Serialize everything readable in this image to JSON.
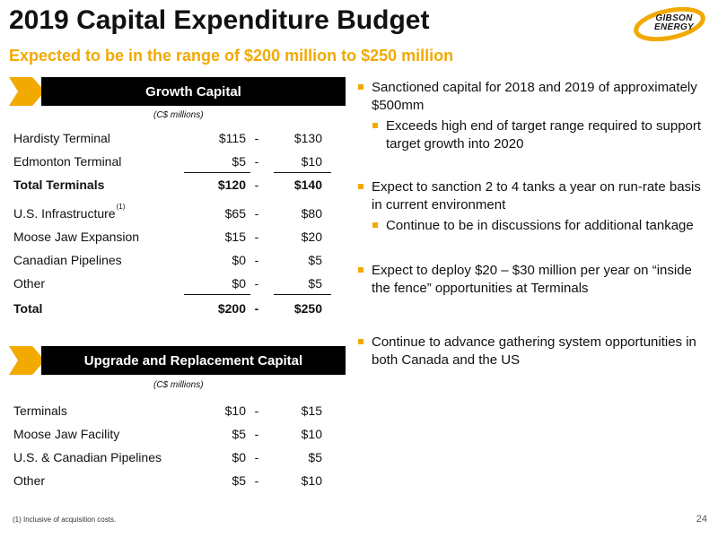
{
  "header": {
    "title": "2019 Capital Expenditure Budget",
    "subtitle": "Expected to be in the range of $200 million to $250 million"
  },
  "logo": {
    "line1": "GIBSON",
    "line2": "ENERGY"
  },
  "growth": {
    "banner": "Growth Capital",
    "unit": "(C$ millions)",
    "rows": [
      {
        "label": "Hardisty Terminal",
        "low": "$115",
        "dash": "-",
        "high": "$130"
      },
      {
        "label": "Edmonton Terminal",
        "low": "$5",
        "dash": "-",
        "high": "$10"
      },
      {
        "label": "Total Terminals",
        "low": "$120",
        "dash": "-",
        "high": "$140"
      },
      {
        "label": "U.S. Infrastructure",
        "sup": "(1)",
        "low": "$65",
        "dash": "-",
        "high": "$80"
      },
      {
        "label": "Moose Jaw Expansion",
        "low": "$15",
        "dash": "-",
        "high": "$20"
      },
      {
        "label": "Canadian Pipelines",
        "low": "$0",
        "dash": "-",
        "high": "$5"
      },
      {
        "label": "Other",
        "low": "$0",
        "dash": "-",
        "high": "$5"
      },
      {
        "label": "Total",
        "low": "$200",
        "dash": "-",
        "high": "$250"
      }
    ]
  },
  "upgrade": {
    "banner": "Upgrade and Replacement Capital",
    "unit": "(C$ millions)",
    "rows": [
      {
        "label": "Terminals",
        "low": "$10",
        "dash": "-",
        "high": "$15"
      },
      {
        "label": "Moose Jaw Facility",
        "low": "$5",
        "dash": "-",
        "high": "$10"
      },
      {
        "label": "U.S. & Canadian Pipelines",
        "low": "$0",
        "dash": "-",
        "high": "$5"
      },
      {
        "label": "Other",
        "low": "$5",
        "dash": "-",
        "high": "$10"
      }
    ]
  },
  "bullets": [
    {
      "text": "Sanctioned capital for 2018 and 2019 of approximately $500mm",
      "sub": "Exceeds high end of target range required to support target growth into 2020"
    },
    {
      "text": "Expect to sanction 2 to 4 tanks a year on run-rate basis in current environment",
      "sub": "Continue to be in discussions for additional tankage"
    },
    {
      "text": "Expect to deploy $20 – $30 million per year on “inside the fence” opportunities at Terminals"
    },
    {
      "text": "Continue to advance gathering system opportunities in both Canada and the US"
    }
  ],
  "footer": {
    "footnote": "(1) Inclusive of acquisition costs.",
    "page": "24"
  },
  "colors": {
    "accent": "#F2A900",
    "banner": "#000000"
  }
}
